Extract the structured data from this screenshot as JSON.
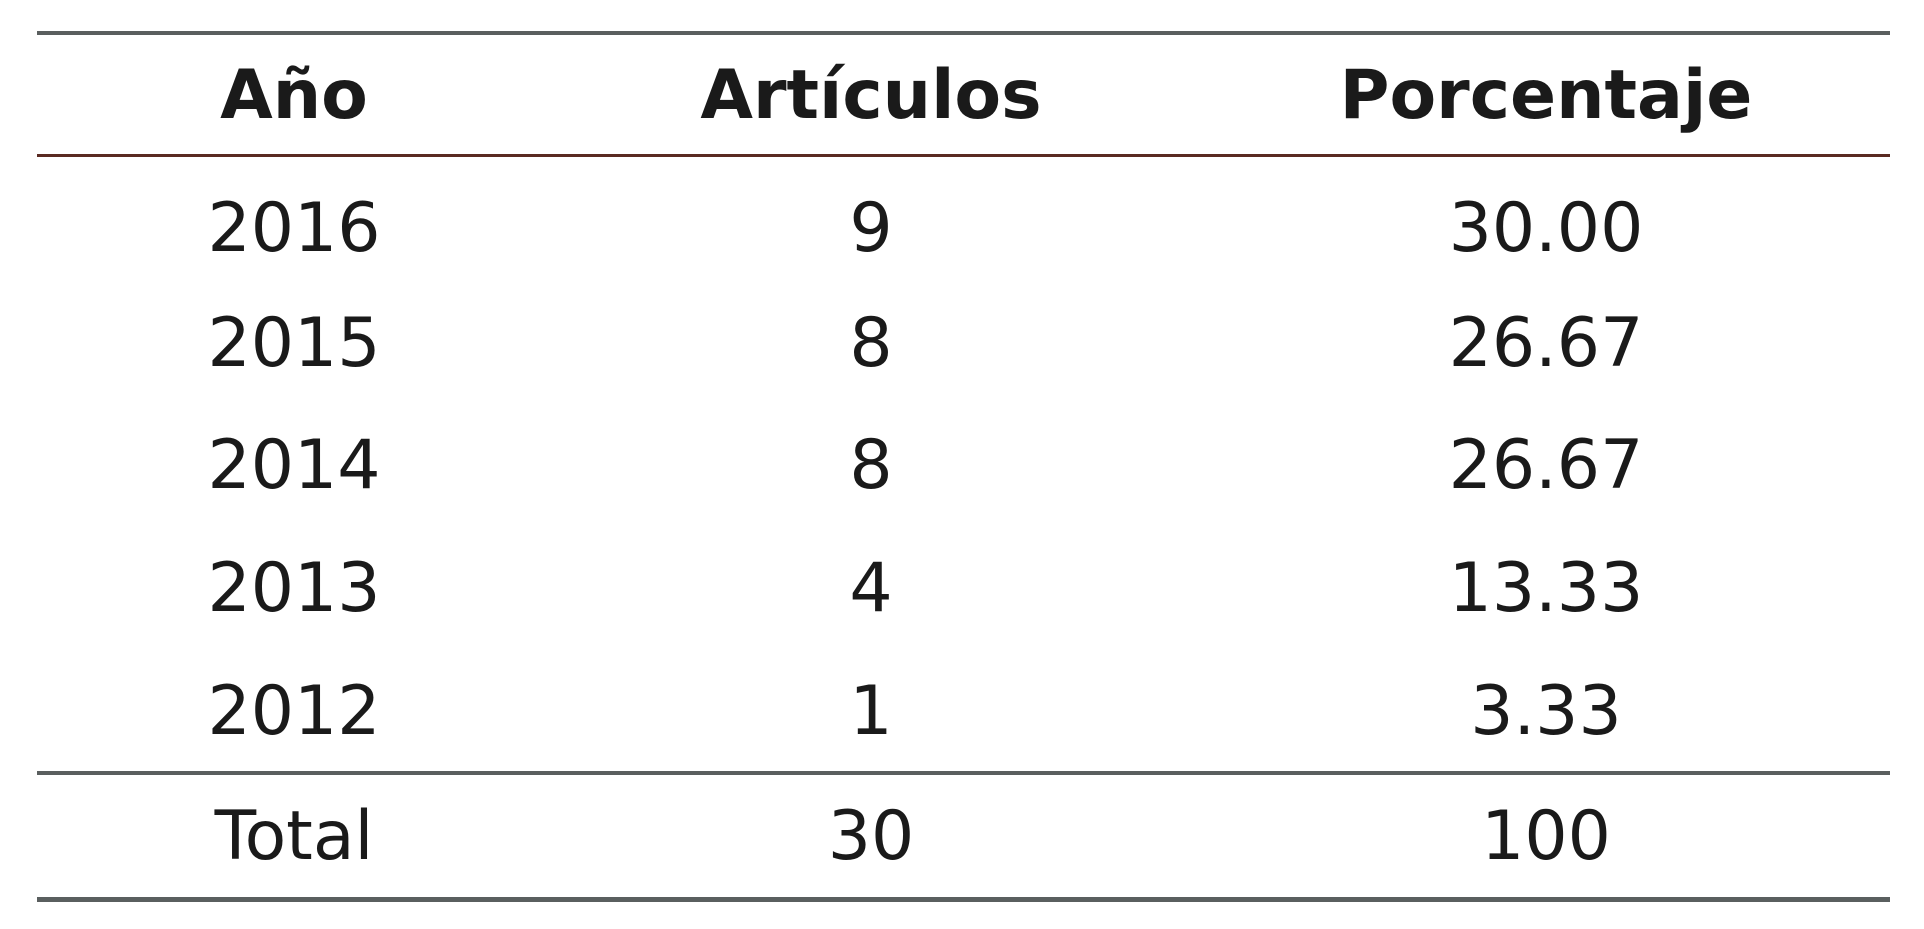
{
  "table": {
    "header": [
      "Año",
      "Artículos",
      "Porcentaje"
    ],
    "rows": [
      [
        "2016",
        "9",
        "30.00"
      ],
      [
        "2015",
        "8",
        "26.67"
      ],
      [
        "2014",
        "8",
        "26.67"
      ],
      [
        "2013",
        "4",
        "13.33"
      ],
      [
        "2012",
        "1",
        "3.33"
      ]
    ],
    "total": [
      "Total",
      "30",
      "100"
    ]
  }
}
